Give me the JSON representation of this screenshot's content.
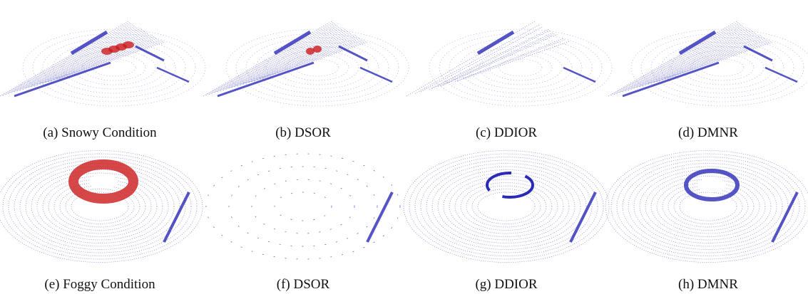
{
  "figure": {
    "panels": [
      {
        "caption": "(a) Snowy Condition"
      },
      {
        "caption": "(b) DSOR"
      },
      {
        "caption": "(c) DDIOR"
      },
      {
        "caption": "(d) DMNR"
      },
      {
        "caption": "(e) Foggy Condition"
      },
      {
        "caption": "(f) DSOR"
      },
      {
        "caption": "(g) DDIOR"
      },
      {
        "caption": "(h) DMNR"
      }
    ]
  }
}
